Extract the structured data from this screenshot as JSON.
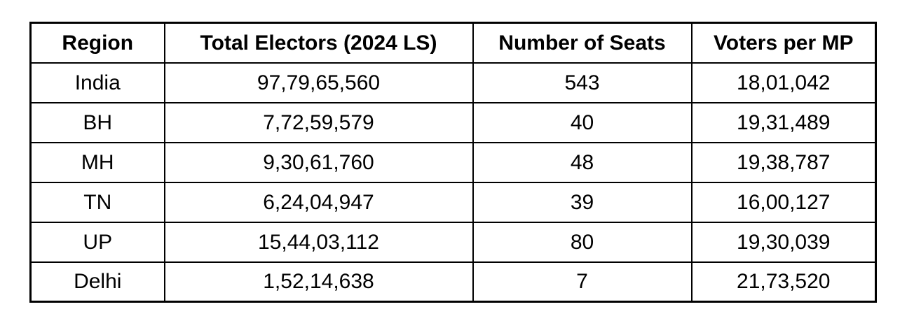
{
  "colors": {
    "border": "#000000",
    "background": "#ffffff",
    "text": "#000000"
  },
  "chart_data": {
    "type": "table",
    "title": "",
    "columns": [
      "Region",
      "Total Electors (2024 LS)",
      "Number of Seats",
      "Voters per MP"
    ],
    "rows": [
      [
        "India",
        "97,79,65,560",
        "543",
        "18,01,042"
      ],
      [
        "BH",
        "7,72,59,579",
        "40",
        "19,31,489"
      ],
      [
        "MH",
        "9,30,61,760",
        "48",
        "19,38,787"
      ],
      [
        "TN",
        "6,24,04,947",
        "39",
        "16,00,127"
      ],
      [
        "UP",
        "15,44,03,112",
        "80",
        "19,30,039"
      ],
      [
        "Delhi",
        "1,52,14,638",
        "7",
        "21,73,520"
      ]
    ]
  }
}
